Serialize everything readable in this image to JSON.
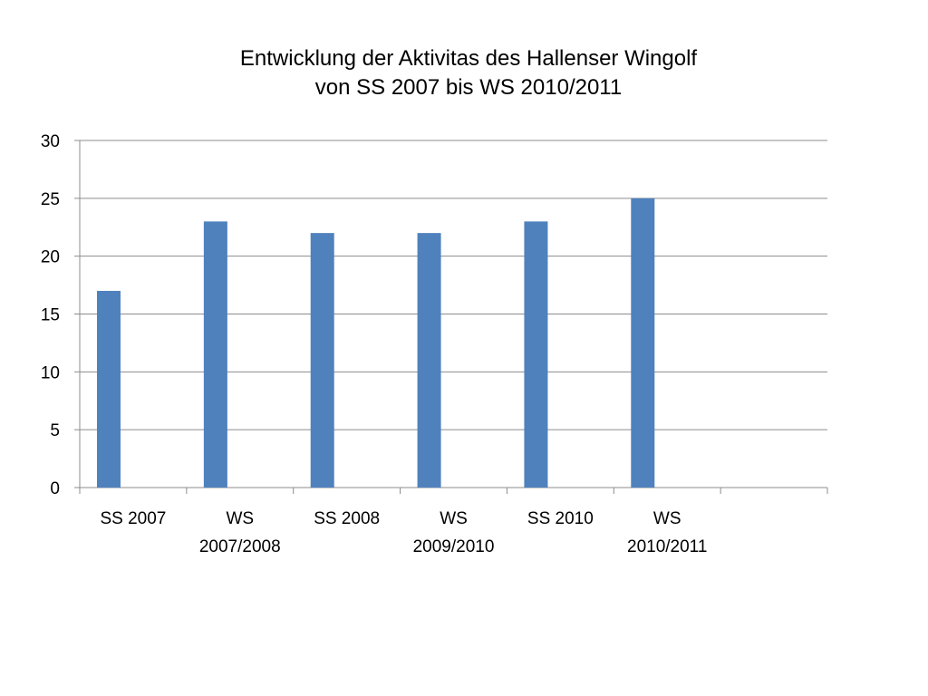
{
  "chart_data": {
    "type": "bar",
    "title_lines": [
      "Entwicklung der Aktivitas des Hallenser Wingolf",
      "von SS 2007 bis WS 2010/2011"
    ],
    "categories": [
      [
        "SS 2007"
      ],
      [
        "WS",
        "2007/2008"
      ],
      [
        "SS 2008"
      ],
      [
        "WS",
        "2009/2010"
      ],
      [
        "SS 2010"
      ],
      [
        "WS",
        "2010/2011"
      ],
      [
        ""
      ]
    ],
    "values": [
      17,
      23,
      22,
      22,
      23,
      25,
      null
    ],
    "ylim": [
      0,
      30
    ],
    "yticks": [
      0,
      5,
      10,
      15,
      20,
      25,
      30
    ],
    "grid": true,
    "legend": "none",
    "bar_color": "#4f81bd",
    "grid_color": "#8c8c8c"
  }
}
